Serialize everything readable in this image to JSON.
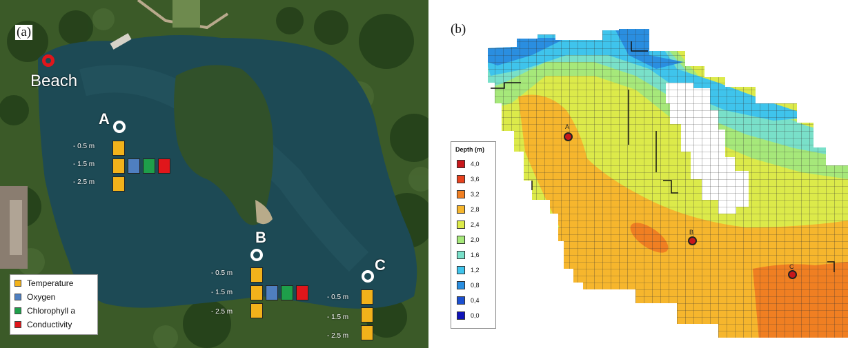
{
  "panel_a": {
    "label": "(a)",
    "beach_label": "Beach",
    "sites": [
      {
        "name": "A",
        "depths": [
          "- 0.5 m",
          "- 1.5 m",
          "- 2.5 m"
        ]
      },
      {
        "name": "B",
        "depths": [
          "- 0.5 m",
          "- 1.5 m",
          "- 2.5 m"
        ]
      },
      {
        "name": "C",
        "depths": [
          "- 0.5 m",
          "- 1.5 m",
          "- 2.5 m"
        ]
      }
    ],
    "legend": [
      {
        "label": "Temperature",
        "color": "#f2b21b"
      },
      {
        "label": "Oxygen",
        "color": "#4f7fc0"
      },
      {
        "label": "Chlorophyll a",
        "color": "#1e9f4a"
      },
      {
        "label": "Conductivity",
        "color": "#e0161b"
      }
    ]
  },
  "panel_b": {
    "label": "(b)",
    "legend_title": "Depth (m)",
    "legend": [
      {
        "label": "4,0",
        "color": "#c8171b"
      },
      {
        "label": "3,6",
        "color": "#e8421e"
      },
      {
        "label": "3,2",
        "color": "#f07f22"
      },
      {
        "label": "2,8",
        "color": "#f6b62d"
      },
      {
        "label": "2,4",
        "color": "#dcea4a"
      },
      {
        "label": "2,0",
        "color": "#a6e87a"
      },
      {
        "label": "1,6",
        "color": "#79e0c9"
      },
      {
        "label": "1,2",
        "color": "#3fc4ec"
      },
      {
        "label": "0,8",
        "color": "#2a8ee0"
      },
      {
        "label": "0,4",
        "color": "#1b4fd0"
      },
      {
        "label": "0,0",
        "color": "#0f13b8"
      }
    ],
    "markers": [
      "A",
      "B",
      "C"
    ]
  }
}
